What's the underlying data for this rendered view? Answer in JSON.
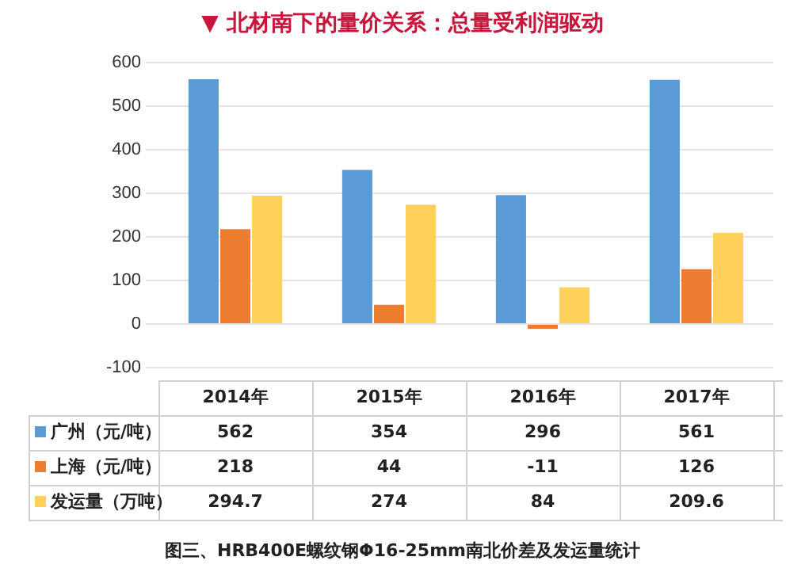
{
  "chart_data": {
    "type": "bar",
    "title": "▼ 北材南下的量价关系：总量受利润驱动",
    "categories": [
      "2014年",
      "2015年",
      "2016年",
      "2017年"
    ],
    "series": [
      {
        "name": "广州（元/吨）",
        "color": "#5b9bd5",
        "values": [
          562,
          354,
          296,
          561
        ]
      },
      {
        "name": "上海（元/吨）",
        "color": "#ed7d31",
        "values": [
          218,
          44,
          -11,
          126
        ]
      },
      {
        "name": "发运量（万吨）",
        "color": "#ffd05a",
        "values": [
          294.7,
          274,
          84,
          209.6
        ]
      }
    ],
    "ylim": [
      -100,
      600
    ],
    "yticks": [
      -100,
      0,
      100,
      200,
      300,
      400,
      500,
      600
    ],
    "grid": "y",
    "legend": "bottom",
    "data_labels": true,
    "annotations": [
      "图三、HRB400E螺纹钢Φ16-25mm南北价差及发运量统计"
    ]
  }
}
